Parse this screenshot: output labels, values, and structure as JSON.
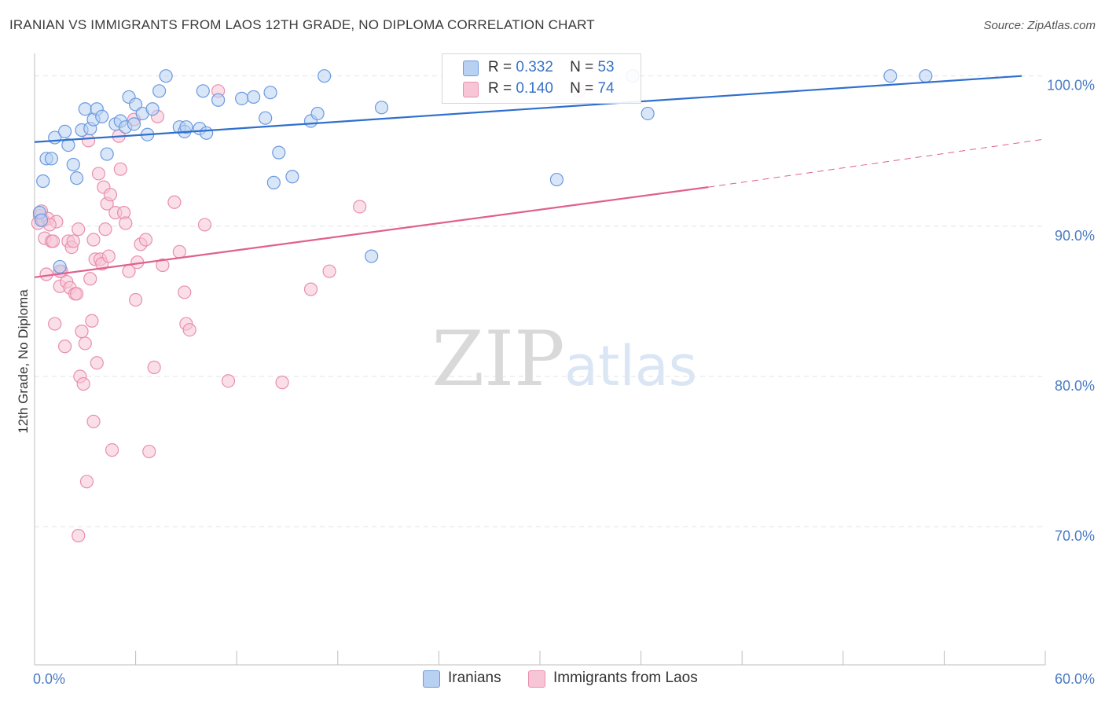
{
  "header": {
    "title": "IRANIAN VS IMMIGRANTS FROM LAOS 12TH GRADE, NO DIPLOMA CORRELATION CHART",
    "source": "Source: ZipAtlas.com"
  },
  "watermark": {
    "zip": "ZIP",
    "atlas": "atlas"
  },
  "legend": {
    "iranians": {
      "r_label": "R =",
      "r_value": "0.332",
      "n_label": "N =",
      "n_value": "53"
    },
    "laos": {
      "r_label": "R =",
      "r_value": "0.140",
      "n_label": "N =",
      "n_value": "74"
    }
  },
  "bottom_legend": {
    "iranians": "Iranians",
    "laos": "Immigrants from Laos"
  },
  "colors": {
    "iranians_fill": "#b8d1f3",
    "iranians_stroke": "#6b9ae0",
    "iranians_line": "#2f6fce",
    "laos_fill": "#f8c5d6",
    "laos_stroke": "#e88fae",
    "laos_line": "#e0608f",
    "tick_text": "#4a7bc4",
    "grid": "#e3e3e3"
  },
  "chart_data": {
    "type": "scatter",
    "title": "IRANIAN VS IMMIGRANTS FROM LAOS 12TH GRADE, NO DIPLOMA CORRELATION CHART",
    "xlabel": "",
    "ylabel": "12th Grade, No Diploma",
    "xlim": [
      0,
      60
    ],
    "ylim": [
      60.8,
      101.5
    ],
    "x_tick_labels": [
      "0.0%",
      "60.0%"
    ],
    "y_ticks": [
      70,
      80,
      90,
      100
    ],
    "y_tick_labels": [
      "70.0%",
      "80.0%",
      "90.0%",
      "100.0%"
    ],
    "grid": true,
    "legend_position": "top-center",
    "series": [
      {
        "name": "Iranians",
        "r": 0.332,
        "n": 53,
        "trend": {
          "x0": 0,
          "y0": 95.6,
          "x1": 58.6,
          "y1": 100.0
        },
        "points": [
          [
            0.3,
            90.9
          ],
          [
            0.4,
            90.4
          ],
          [
            0.5,
            93.0
          ],
          [
            0.7,
            94.5
          ],
          [
            1.0,
            94.5
          ],
          [
            1.2,
            95.9
          ],
          [
            1.5,
            87.3
          ],
          [
            1.8,
            96.3
          ],
          [
            2.0,
            95.4
          ],
          [
            2.3,
            94.1
          ],
          [
            2.5,
            93.2
          ],
          [
            2.8,
            96.4
          ],
          [
            3.0,
            97.8
          ],
          [
            3.3,
            96.5
          ],
          [
            3.5,
            97.1
          ],
          [
            3.7,
            97.8
          ],
          [
            4.0,
            97.3
          ],
          [
            4.3,
            94.8
          ],
          [
            4.8,
            96.8
          ],
          [
            5.1,
            97.0
          ],
          [
            5.4,
            96.6
          ],
          [
            5.6,
            98.6
          ],
          [
            5.9,
            96.8
          ],
          [
            6.0,
            98.1
          ],
          [
            6.4,
            97.5
          ],
          [
            6.7,
            96.1
          ],
          [
            7.0,
            97.8
          ],
          [
            7.4,
            99.0
          ],
          [
            7.8,
            100.0
          ],
          [
            8.6,
            96.6
          ],
          [
            8.9,
            96.3
          ],
          [
            9.0,
            96.6
          ],
          [
            9.8,
            96.5
          ],
          [
            10.0,
            99.0
          ],
          [
            10.2,
            96.2
          ],
          [
            10.9,
            98.4
          ],
          [
            12.3,
            98.5
          ],
          [
            13.0,
            98.6
          ],
          [
            13.7,
            97.2
          ],
          [
            14.0,
            98.9
          ],
          [
            14.2,
            92.9
          ],
          [
            14.5,
            94.9
          ],
          [
            15.3,
            93.3
          ],
          [
            16.4,
            97.0
          ],
          [
            16.8,
            97.5
          ],
          [
            17.2,
            100.0
          ],
          [
            20.0,
            88.0
          ],
          [
            20.6,
            97.9
          ],
          [
            31.0,
            93.1
          ],
          [
            35.5,
            100.0
          ],
          [
            36.4,
            97.5
          ],
          [
            50.8,
            100.0
          ],
          [
            52.9,
            100.0
          ]
        ]
      },
      {
        "name": "Immigrants from Laos",
        "r": 0.14,
        "n": 74,
        "trend": {
          "x0": 0,
          "y0": 86.6,
          "x1": 40.0,
          "y1": 92.6
        },
        "trend_extension": {
          "x0": 40.0,
          "y0": 92.6,
          "x1": 60,
          "y1": 95.8
        },
        "points": [
          [
            0.2,
            90.2
          ],
          [
            0.3,
            90.7
          ],
          [
            0.4,
            91.0
          ],
          [
            0.5,
            90.4
          ],
          [
            0.6,
            89.2
          ],
          [
            0.7,
            86.8
          ],
          [
            0.8,
            90.5
          ],
          [
            1.0,
            89.0
          ],
          [
            1.1,
            89.0
          ],
          [
            1.2,
            83.5
          ],
          [
            1.3,
            90.3
          ],
          [
            1.5,
            86.0
          ],
          [
            1.6,
            87.0
          ],
          [
            1.8,
            82.0
          ],
          [
            1.9,
            86.3
          ],
          [
            2.0,
            89.0
          ],
          [
            2.1,
            85.9
          ],
          [
            2.2,
            88.6
          ],
          [
            2.3,
            89.0
          ],
          [
            2.4,
            85.5
          ],
          [
            2.5,
            85.5
          ],
          [
            2.6,
            89.8
          ],
          [
            2.7,
            80.0
          ],
          [
            2.8,
            83.0
          ],
          [
            2.9,
            79.5
          ],
          [
            3.0,
            82.2
          ],
          [
            3.1,
            73.0
          ],
          [
            3.2,
            95.7
          ],
          [
            3.3,
            86.5
          ],
          [
            3.4,
            83.7
          ],
          [
            3.5,
            77.0
          ],
          [
            3.6,
            87.8
          ],
          [
            3.7,
            80.9
          ],
          [
            3.8,
            93.5
          ],
          [
            3.9,
            87.8
          ],
          [
            4.0,
            87.5
          ],
          [
            4.1,
            92.6
          ],
          [
            4.2,
            89.8
          ],
          [
            4.3,
            91.5
          ],
          [
            4.4,
            88.0
          ],
          [
            4.5,
            92.1
          ],
          [
            4.6,
            75.1
          ],
          [
            4.8,
            90.9
          ],
          [
            5.0,
            96.0
          ],
          [
            5.1,
            93.8
          ],
          [
            5.3,
            90.9
          ],
          [
            5.4,
            90.2
          ],
          [
            5.6,
            87.0
          ],
          [
            5.9,
            97.1
          ],
          [
            6.0,
            85.1
          ],
          [
            6.1,
            87.6
          ],
          [
            6.3,
            88.8
          ],
          [
            6.6,
            89.1
          ],
          [
            6.8,
            75.0
          ],
          [
            7.1,
            80.6
          ],
          [
            7.3,
            97.3
          ],
          [
            7.6,
            87.4
          ],
          [
            8.3,
            91.6
          ],
          [
            8.6,
            88.3
          ],
          [
            8.9,
            85.6
          ],
          [
            9.0,
            83.5
          ],
          [
            9.2,
            83.1
          ],
          [
            10.1,
            90.1
          ],
          [
            10.9,
            99.0
          ],
          [
            11.5,
            79.7
          ],
          [
            14.7,
            79.6
          ],
          [
            16.4,
            85.8
          ],
          [
            17.5,
            87.0
          ],
          [
            19.3,
            91.3
          ],
          [
            32.3,
            99.0
          ],
          [
            2.6,
            69.4
          ],
          [
            1.5,
            87.0
          ],
          [
            3.5,
            89.1
          ],
          [
            0.9,
            90.1
          ]
        ]
      }
    ]
  }
}
